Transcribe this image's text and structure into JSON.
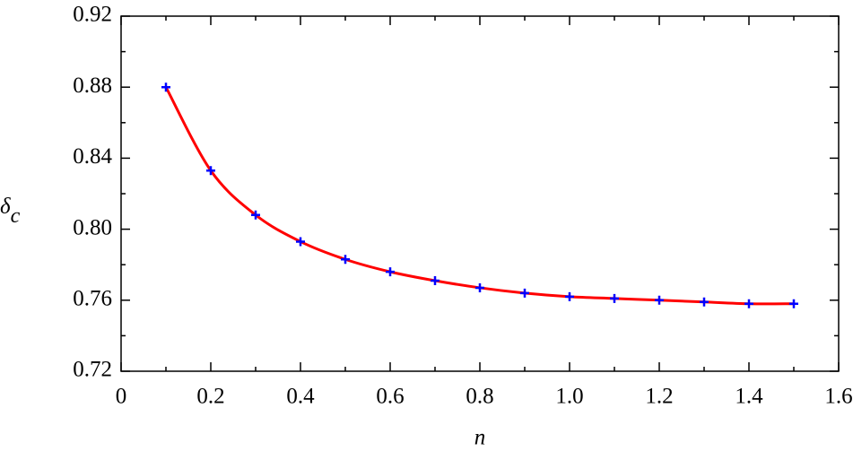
{
  "chart_data": {
    "type": "line",
    "xlabel": "n",
    "ylabel": {
      "symbol": "δ",
      "subscript": "c"
    },
    "x": [
      0.1,
      0.2,
      0.3,
      0.4,
      0.5,
      0.6,
      0.7,
      0.8,
      0.9,
      1.0,
      1.1,
      1.2,
      1.3,
      1.4,
      1.5
    ],
    "series": [
      {
        "style": "line",
        "color": "#ff0000",
        "values": [
          0.88,
          0.833,
          0.808,
          0.793,
          0.783,
          0.776,
          0.771,
          0.767,
          0.764,
          0.762,
          0.761,
          0.76,
          0.759,
          0.758,
          0.758
        ]
      },
      {
        "style": "marker",
        "color": "#0000ff",
        "values": [
          0.88,
          0.833,
          0.808,
          0.793,
          0.783,
          0.776,
          0.771,
          0.767,
          0.764,
          0.762,
          0.761,
          0.76,
          0.759,
          0.758,
          0.758
        ]
      }
    ],
    "xlim": [
      0,
      1.6
    ],
    "ylim": [
      0.72,
      0.92
    ],
    "xticks": [
      0,
      0.2,
      0.4,
      0.6,
      0.8,
      {
        "value": 1,
        "label": "1.0"
      },
      1.2,
      1.4,
      1.6
    ],
    "yticks": [
      0.72,
      0.76,
      {
        "value": 0.8,
        "label": "0.80"
      },
      0.84,
      0.88,
      0.92
    ],
    "xminorticks": [
      0.1,
      0.3,
      0.5,
      0.7,
      0.9,
      1.1,
      1.3,
      1.5
    ],
    "yminorticks": [
      0.74,
      0.78,
      0.82,
      0.86,
      0.9
    ]
  }
}
